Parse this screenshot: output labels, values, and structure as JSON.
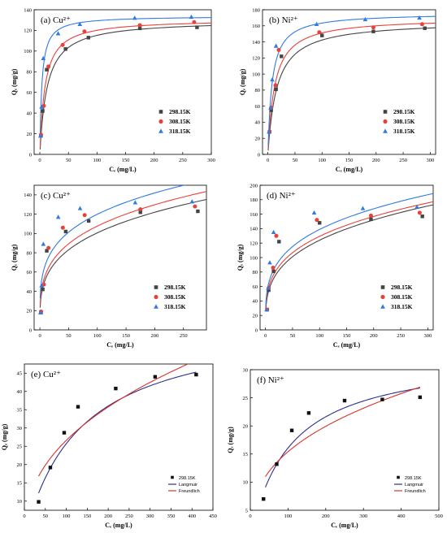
{
  "chart_data": [
    {
      "type": "scatter",
      "title": "(a) Cu²⁺",
      "xlabel": "Cₑ  (mg/L)",
      "ylabel": "Qₑ (mg/g)",
      "xlim": [
        -10,
        300
      ],
      "ylim": [
        0,
        140
      ],
      "xticks": [
        "0",
        "50",
        "100",
        "150",
        "200",
        "250",
        "300"
      ],
      "yticks": [
        "0",
        "20",
        "40",
        "60",
        "80",
        "100",
        "120",
        "140"
      ],
      "legend_position": "lower-right",
      "series": [
        {
          "name": "298.15K",
          "color": "#444444",
          "marker": "square",
          "points": [
            [
              2,
              18
            ],
            [
              5,
              42
            ],
            [
              12,
              82
            ],
            [
              45,
              102
            ],
            [
              85,
              113
            ],
            [
              175,
              122
            ],
            [
              275,
              123
            ]
          ],
          "fit": {
            "model": "langmuir",
            "qm": 130,
            "k": 0.078
          }
        },
        {
          "name": "308.15K",
          "color": "#e8413a",
          "marker": "circle",
          "points": [
            [
              2,
              19
            ],
            [
              7,
              47
            ],
            [
              15,
              85
            ],
            [
              40,
              106
            ],
            [
              78,
              119
            ],
            [
              175,
              125
            ],
            [
              270,
              128
            ]
          ],
          "fit": {
            "model": "langmuir",
            "qm": 131,
            "k": 0.11
          }
        },
        {
          "name": "318.15K",
          "color": "#2f7be0",
          "marker": "triangle",
          "points": [
            [
              1,
              18
            ],
            [
              3,
              46
            ],
            [
              6,
              93
            ],
            [
              32,
              117
            ],
            [
              70,
              126
            ],
            [
              166,
              132
            ],
            [
              265,
              133
            ]
          ],
          "fit": {
            "model": "langmuir",
            "qm": 134,
            "k": 0.28
          }
        }
      ]
    },
    {
      "type": "scatter",
      "title": "(b) Ni²⁺",
      "xlabel": "Cₑ  (mg/L)",
      "ylabel": "Qₑ (mg/g)",
      "xlim": [
        -10,
        310
      ],
      "ylim": [
        0,
        180
      ],
      "xticks": [
        "0",
        "50",
        "100",
        "150",
        "200",
        "250",
        "300"
      ],
      "yticks": [
        "0",
        "20",
        "40",
        "60",
        "80",
        "100",
        "120",
        "140",
        "160",
        "180"
      ],
      "legend_position": "lower-right",
      "series": [
        {
          "name": "298.15K",
          "color": "#444444",
          "marker": "square",
          "points": [
            [
              3,
              28
            ],
            [
              6,
              55
            ],
            [
              15,
              81
            ],
            [
              25,
              122
            ],
            [
              100,
              148
            ],
            [
              195,
              153
            ],
            [
              290,
              157
            ]
          ],
          "fit": {
            "model": "langmuir",
            "qm": 166,
            "k": 0.06
          }
        },
        {
          "name": "308.15K",
          "color": "#e8413a",
          "marker": "circle",
          "points": [
            [
              3,
              28
            ],
            [
              6,
              58
            ],
            [
              14,
              86
            ],
            [
              20,
              130
            ],
            [
              95,
              152
            ],
            [
              195,
              158
            ],
            [
              285,
              162
            ]
          ],
          "fit": {
            "model": "langmuir",
            "qm": 170,
            "k": 0.08
          }
        },
        {
          "name": "318.15K",
          "color": "#2f7be0",
          "marker": "triangle",
          "points": [
            [
              2,
              28
            ],
            [
              5,
              58
            ],
            [
              8,
              93
            ],
            [
              15,
              135
            ],
            [
              90,
              162
            ],
            [
              180,
              168
            ],
            [
              280,
              170
            ]
          ],
          "fit": {
            "model": "langmuir",
            "qm": 176,
            "k": 0.13
          }
        }
      ]
    },
    {
      "type": "scatter",
      "title": "(c) Cu²⁺",
      "xlabel": "Cₑ  (mg/L)",
      "ylabel": "Qₑ (mg/g)",
      "xlim": [
        -10,
        290
      ],
      "ylim": [
        0,
        150
      ],
      "xticks": [
        "0",
        "50",
        "100",
        "150",
        "200",
        "250"
      ],
      "yticks": [
        "0",
        "20",
        "40",
        "60",
        "80",
        "100",
        "120",
        "140"
      ],
      "legend_position": "lower-right",
      "series": [
        {
          "name": "298.15K",
          "color": "#444444",
          "marker": "square",
          "points": [
            [
              2,
              18
            ],
            [
              5,
              42
            ],
            [
              12,
              82
            ],
            [
              45,
              102
            ],
            [
              85,
              113
            ],
            [
              175,
              122
            ],
            [
              275,
              123
            ]
          ],
          "fit": {
            "model": "freundlich",
            "kf": 28,
            "n": 3.6
          }
        },
        {
          "name": "308.15K",
          "color": "#e8413a",
          "marker": "circle",
          "points": [
            [
              2,
              19
            ],
            [
              7,
              47
            ],
            [
              15,
              85
            ],
            [
              40,
              106
            ],
            [
              78,
              119
            ],
            [
              175,
              125
            ],
            [
              270,
              128
            ]
          ],
          "fit": {
            "model": "freundlich",
            "kf": 31,
            "n": 3.7
          }
        },
        {
          "name": "318.15K",
          "color": "#2f7be0",
          "marker": "triangle",
          "points": [
            [
              1,
              18
            ],
            [
              3,
              46
            ],
            [
              6,
              89
            ],
            [
              32,
              117
            ],
            [
              70,
              126
            ],
            [
              166,
              132
            ],
            [
              265,
              133
            ]
          ],
          "fit": {
            "model": "freundlich",
            "kf": 39,
            "n": 4.1
          }
        }
      ]
    },
    {
      "type": "scatter",
      "title": "(d) Ni²⁺",
      "xlabel": "Cₑ  (mg/L)",
      "ylabel": "Qₑ (mg/g)",
      "xlim": [
        -10,
        310
      ],
      "ylim": [
        0,
        200
      ],
      "xticks": [
        "0",
        "50",
        "100",
        "150",
        "200",
        "250",
        "300"
      ],
      "yticks": [
        "0",
        "20",
        "40",
        "60",
        "80",
        "100",
        "120",
        "140",
        "160",
        "180",
        "200"
      ],
      "legend_position": "lower-right",
      "series": [
        {
          "name": "298.15K",
          "color": "#444444",
          "marker": "square",
          "points": [
            [
              3,
              28
            ],
            [
              6,
              55
            ],
            [
              15,
              81
            ],
            [
              25,
              122
            ],
            [
              100,
              148
            ],
            [
              195,
              153
            ],
            [
              290,
              157
            ]
          ],
          "fit": {
            "model": "freundlich",
            "kf": 32,
            "n": 3.4
          }
        },
        {
          "name": "308.15K",
          "color": "#e8413a",
          "marker": "circle",
          "points": [
            [
              3,
              28
            ],
            [
              6,
              58
            ],
            [
              14,
              86
            ],
            [
              20,
              130
            ],
            [
              95,
              152
            ],
            [
              195,
              158
            ],
            [
              285,
              162
            ]
          ],
          "fit": {
            "model": "freundlich",
            "kf": 36,
            "n": 3.6
          }
        },
        {
          "name": "318.15K",
          "color": "#2f7be0",
          "marker": "triangle",
          "points": [
            [
              2,
              28
            ],
            [
              5,
              58
            ],
            [
              8,
              93
            ],
            [
              15,
              135
            ],
            [
              90,
              162
            ],
            [
              180,
              168
            ],
            [
              280,
              170
            ]
          ],
          "fit": {
            "model": "freundlich",
            "kf": 40,
            "n": 3.7
          }
        }
      ]
    },
    {
      "type": "scatter",
      "title": "(e) Cu²⁺",
      "xlabel": "Cₑ (mg/L)",
      "ylabel": "Qₑ (mg/g)",
      "xlim": [
        0,
        450
      ],
      "ylim": [
        7.5,
        47.5
      ],
      "xticks": [
        "0",
        "50",
        "100",
        "150",
        "200",
        "250",
        "300",
        "350",
        "400",
        "450"
      ],
      "yticks": [
        "10",
        "15",
        "20",
        "25",
        "30",
        "35",
        "40",
        "45"
      ],
      "legend_position": "lower-right",
      "series": [
        {
          "name": "298.15K",
          "color": "#111111",
          "marker": "square",
          "points": [
            [
              34,
              9.8
            ],
            [
              62,
              19.2
            ],
            [
              95,
              28.7
            ],
            [
              128,
              35.8
            ],
            [
              218,
              40.8
            ],
            [
              312,
              44
            ],
            [
              410,
              44.6
            ]
          ]
        },
        {
          "name": "Langmuir",
          "color": "#2b2f8f",
          "marker": "line",
          "fit": {
            "model": "langmuir",
            "qm": 60,
            "k": 0.0075
          },
          "x_range": [
            34,
            410
          ]
        },
        {
          "name": "Freundlich",
          "color": "#d9332b",
          "marker": "line",
          "fit": {
            "model": "freundlich",
            "kf": 3.75,
            "n": 2.35
          },
          "x_range": [
            34,
            410
          ]
        }
      ]
    },
    {
      "type": "scatter",
      "title": "(f) Ni²⁺",
      "xlabel": "Cₑ (mg/L)",
      "ylabel": "Qₑ (mg/g)",
      "xlim": [
        0,
        500
      ],
      "ylim": [
        5,
        30
      ],
      "xticks": [
        "0",
        "100",
        "200",
        "300",
        "400",
        "500"
      ],
      "yticks": [
        "5",
        "10",
        "15",
        "20",
        "25",
        "30"
      ],
      "legend_position": "lower-right",
      "series": [
        {
          "name": "298.15K",
          "color": "#111111",
          "marker": "square",
          "points": [
            [
              35,
              7
            ],
            [
              70,
              13.2
            ],
            [
              110,
              19.2
            ],
            [
              155,
              22.3
            ],
            [
              250,
              24.5
            ],
            [
              350,
              24.7
            ],
            [
              450,
              25.1
            ]
          ]
        },
        {
          "name": "Langmuir",
          "color": "#2b2f8f",
          "marker": "line",
          "fit": {
            "model": "langmuir",
            "qm": 33,
            "k": 0.0095
          },
          "x_range": [
            40,
            450
          ]
        },
        {
          "name": "Freundlich",
          "color": "#d9332b",
          "marker": "line",
          "fit": {
            "model": "freundlich",
            "kf": 2.8,
            "n": 2.7
          },
          "x_range": [
            40,
            450
          ]
        }
      ]
    }
  ]
}
